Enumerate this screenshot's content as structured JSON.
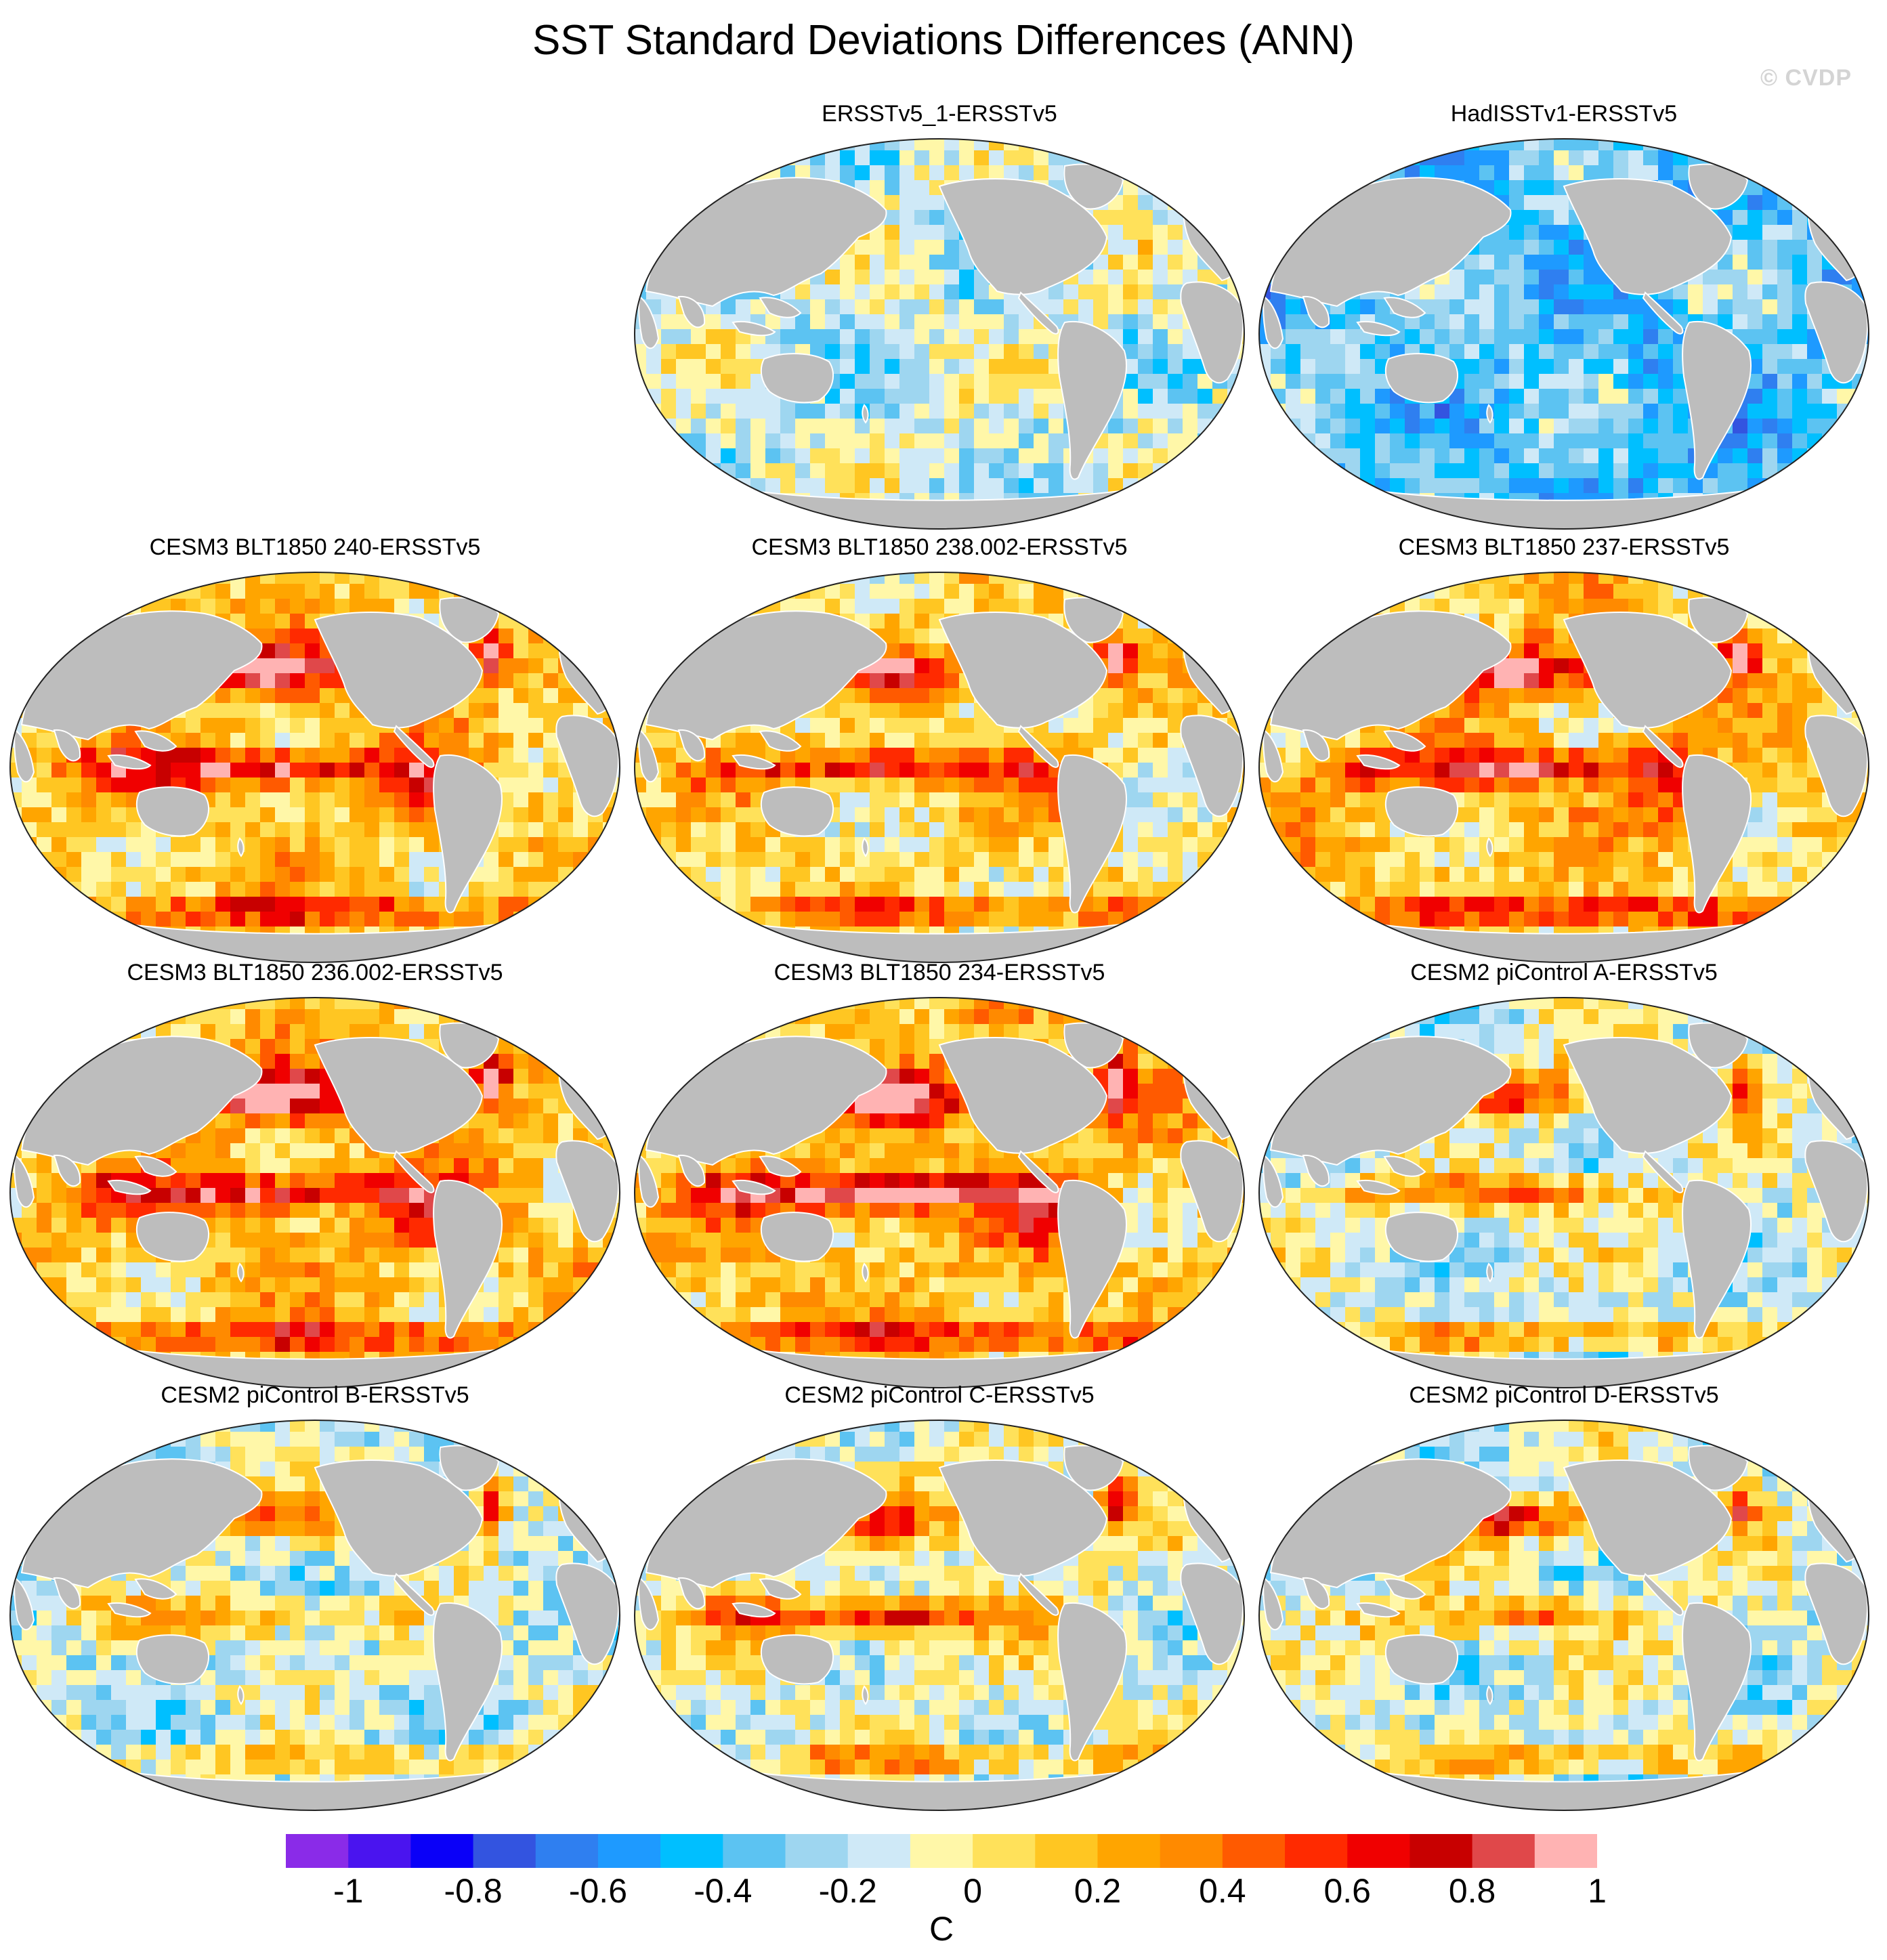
{
  "title": "SST Standard Deviations Differences (ANN)",
  "watermark": "© CVDP",
  "colors": {
    "land": "#bdbdbd",
    "coast": "#ffffff",
    "outline": "#222222",
    "ocean_neutral": "#ffffff"
  },
  "panels": [
    {
      "label": "ERSSTv5_1-ERSSTv5",
      "bias": -0.05,
      "enso": 0.0,
      "north_atlantic": 0.0,
      "southern_ocean": 0.05,
      "kuroshio": 0.0,
      "peru": 0.0
    },
    {
      "label": "HadISSTv1-ERSSTv5",
      "bias": -0.25,
      "enso": 0.0,
      "north_atlantic": 0.0,
      "southern_ocean": -0.1,
      "kuroshio": 0.0,
      "peru": -0.15
    },
    {
      "label": "CESM3 BLT1850 240-ERSSTv5",
      "bias": 0.22,
      "enso": 0.65,
      "north_atlantic": 0.9,
      "southern_ocean": 0.6,
      "kuroshio": 0.75,
      "peru": 0.4
    },
    {
      "label": "CESM3 BLT1850 238.002-ERSSTv5",
      "bias": 0.15,
      "enso": 0.55,
      "north_atlantic": 0.8,
      "southern_ocean": 0.55,
      "kuroshio": 0.65,
      "peru": 0.35
    },
    {
      "label": "CESM3 BLT1850 237-ERSSTv5",
      "bias": 0.22,
      "enso": 0.6,
      "north_atlantic": 0.95,
      "southern_ocean": 0.6,
      "kuroshio": 0.8,
      "peru": 0.5
    },
    {
      "label": "CESM3 BLT1850 236.002-ERSSTv5",
      "bias": 0.25,
      "enso": 0.6,
      "north_atlantic": 1.0,
      "southern_ocean": 0.6,
      "kuroshio": 0.85,
      "peru": 0.45
    },
    {
      "label": "CESM3 BLT1850 234-ERSSTv5",
      "bias": 0.25,
      "enso": 0.8,
      "north_atlantic": 1.0,
      "southern_ocean": 0.55,
      "kuroshio": 0.9,
      "peru": 0.55
    },
    {
      "label": "CESM2 piControl A-ERSSTv5",
      "bias": -0.02,
      "enso": 0.45,
      "north_atlantic": 0.75,
      "southern_ocean": 0.45,
      "kuroshio": 0.65,
      "peru": 0.1
    },
    {
      "label": "CESM2 piControl B-ERSSTv5",
      "bias": -0.05,
      "enso": 0.35,
      "north_atlantic": 0.8,
      "southern_ocean": 0.35,
      "kuroshio": 0.55,
      "peru": 0.0
    },
    {
      "label": "CESM2 piControl C-ERSSTv5",
      "bias": 0.02,
      "enso": 0.6,
      "north_atlantic": 0.7,
      "southern_ocean": 0.4,
      "kuroshio": 0.45,
      "peru": 0.1
    },
    {
      "label": "CESM2 piControl D-ERSSTv5",
      "bias": -0.03,
      "enso": 0.4,
      "north_atlantic": 0.85,
      "southern_ocean": 0.4,
      "kuroshio": 0.65,
      "peru": 0.05
    }
  ],
  "colorbar": {
    "units": "C",
    "levels": [
      -1,
      -0.9,
      -0.8,
      -0.7,
      -0.6,
      -0.5,
      -0.4,
      -0.3,
      -0.2,
      -0.1,
      0,
      0.1,
      0.2,
      0.3,
      0.4,
      0.5,
      0.6,
      0.7,
      0.8,
      0.9,
      1
    ],
    "colors": [
      "#8a2be8",
      "#4a14ef",
      "#0a00f8",
      "#3354e0",
      "#2f7ff0",
      "#1e9aff",
      "#00bfff",
      "#5cc3f2",
      "#9ed6f0",
      "#cfe9f7",
      "#fff7a8",
      "#ffe15a",
      "#ffc622",
      "#ffa500",
      "#ff8a00",
      "#ff5a00",
      "#ff2a00",
      "#f00000",
      "#c80000",
      "#e0484a",
      "#ffb3b3"
    ],
    "tick_labels": [
      "-1",
      "-0.8",
      "-0.6",
      "-0.4",
      "-0.2",
      "0",
      "0.2",
      "0.4",
      "0.6",
      "0.8",
      "1"
    ]
  }
}
